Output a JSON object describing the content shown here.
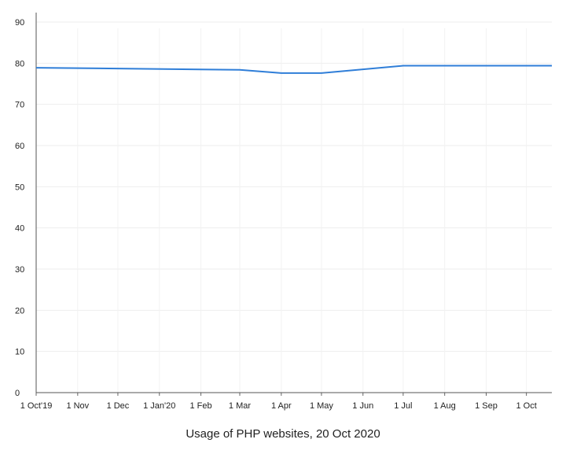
{
  "chart_data": {
    "type": "line",
    "title": "Usage of PHP websites, 20 Oct 2020",
    "xlabel": "",
    "ylabel": "",
    "ylim": [
      0,
      90
    ],
    "yticks": [
      0,
      10,
      20,
      30,
      40,
      50,
      60,
      70,
      80,
      90
    ],
    "xticks": [
      "1 Oct'19",
      "1 Nov",
      "1 Dec",
      "1 Jan'20",
      "1 Feb",
      "1 Mar",
      "1 Apr",
      "1 May",
      "1 Jun",
      "1 Jul",
      "1 Aug",
      "1 Sep",
      "1 Oct"
    ],
    "grid": true,
    "color": "#2f7ed8",
    "series": [
      {
        "x": [
          "2019-10-01",
          "2020-03-01",
          "2020-04-01",
          "2020-05-01",
          "2020-07-01",
          "2020-10-20"
        ],
        "values": [
          78.9,
          78.4,
          77.6,
          77.6,
          79.4,
          79.4
        ]
      }
    ]
  }
}
